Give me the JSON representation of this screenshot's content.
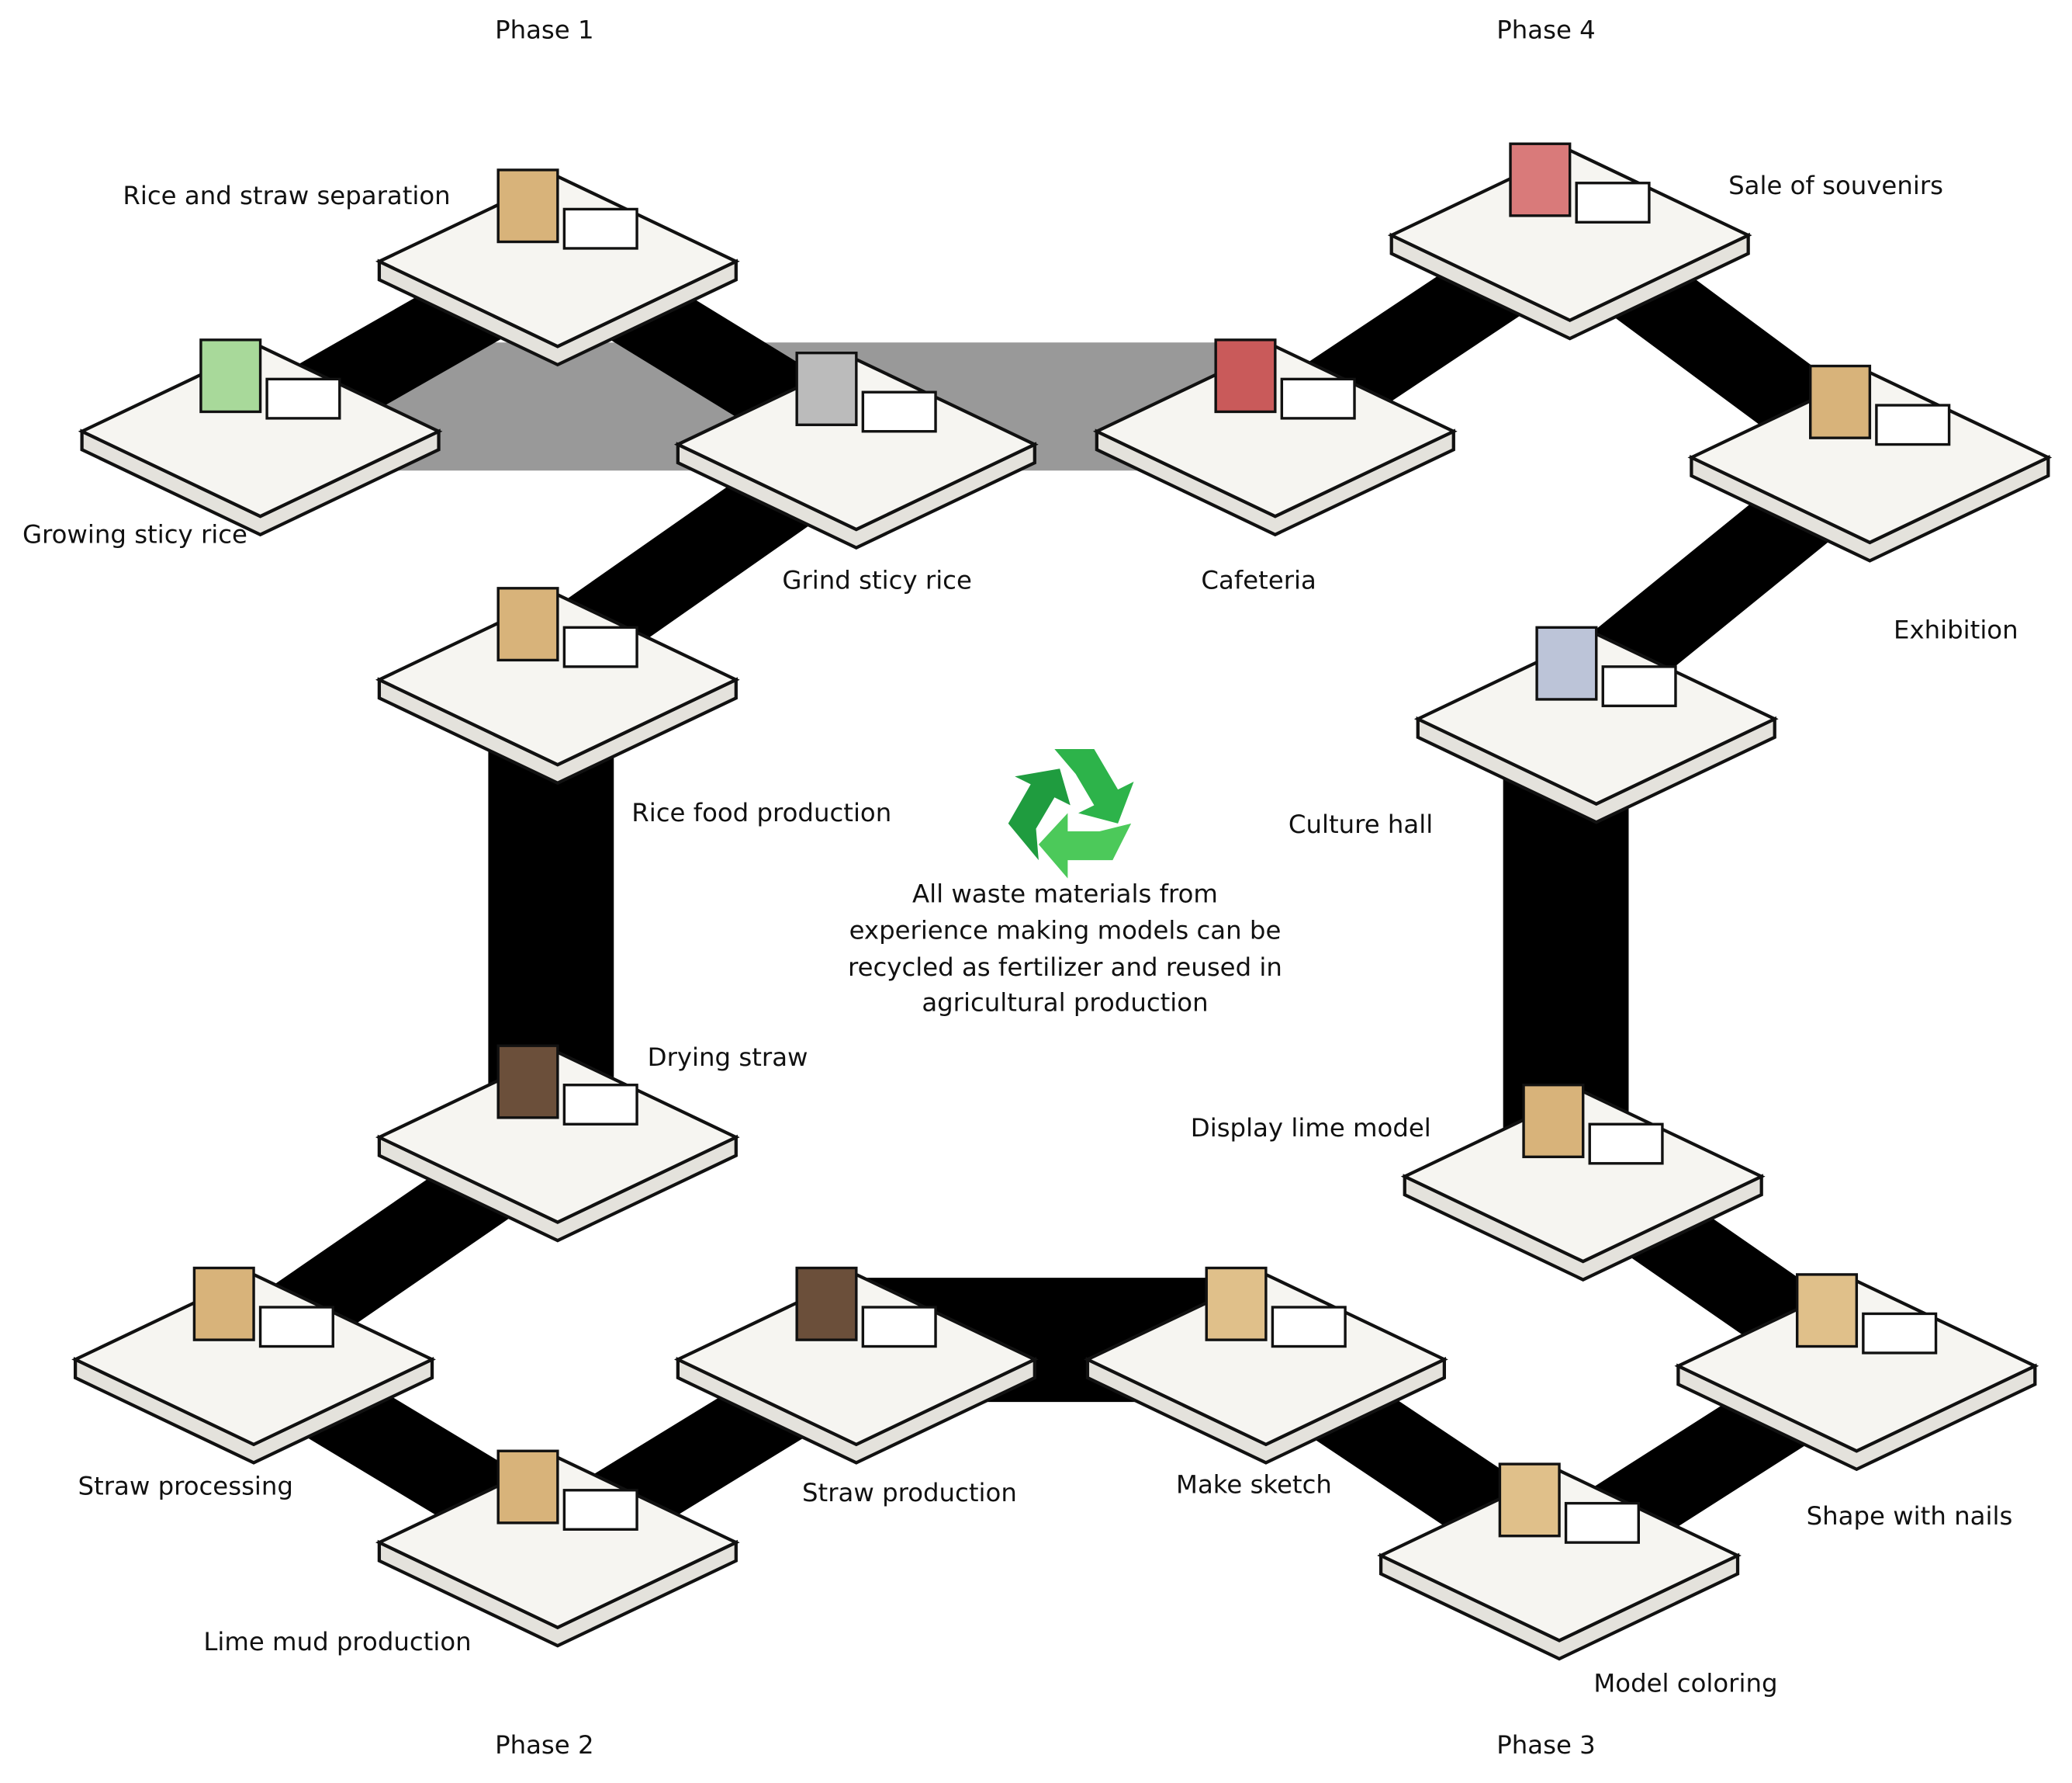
{
  "phases": [
    "Phase 1",
    "Phase 2",
    "Phase 3",
    "Phase 4"
  ],
  "stages": [
    "Growing sticy rice",
    "Rice and straw separation",
    "Grind sticy rice",
    "Rice food production",
    "Drying straw",
    "Straw processing",
    "Lime mud production",
    "Straw production",
    "Make sketch",
    "Model coloring",
    "Shape with nails",
    "Display lime model",
    "Culture hall",
    "Exhibition",
    "Sale of souvenirs",
    "Cafeteria"
  ],
  "note": [
    "All waste materials from",
    "experience making models can be",
    "recycled as fertilizer and reused in",
    "agricultural production"
  ]
}
